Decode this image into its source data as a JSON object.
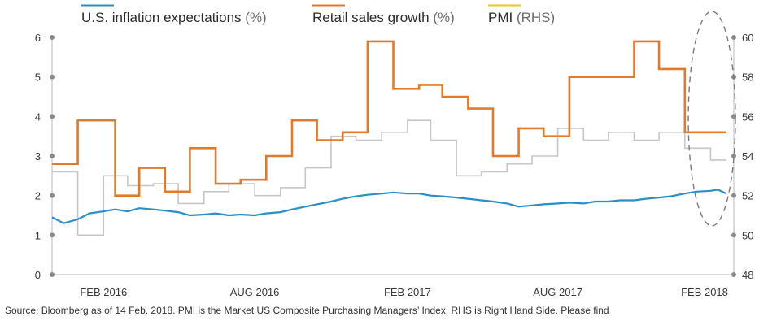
{
  "chart_data": {
    "type": "line",
    "legend": [
      {
        "label": "U.S. inflation expectations",
        "unit": "(%)",
        "color": "#2a8fc6"
      },
      {
        "label": "Retail sales growth",
        "unit": "(%)",
        "color": "#e07b2e"
      },
      {
        "label": "PMI",
        "unit": "(RHS)",
        "color": "#f2c21b"
      }
    ],
    "left_axis": {
      "ylim": [
        0,
        6
      ],
      "ticks": [
        "0",
        "1",
        "2",
        "3",
        "4",
        "5",
        "6"
      ]
    },
    "right_axis": {
      "ylim": [
        48,
        60
      ],
      "ticks": [
        "48",
        "50",
        "52",
        "54",
        "56",
        "58",
        "60"
      ]
    },
    "x_range": [
      "2015-12-01",
      "2018-03-01"
    ],
    "x_ticks": [
      {
        "label": "FEB 2016",
        "date": "2016-02-01"
      },
      {
        "label": "AUG 2016",
        "date": "2016-08-01"
      },
      {
        "label": "FEB 2017",
        "date": "2017-02-01"
      },
      {
        "label": "AUG 2017",
        "date": "2017-08-01"
      },
      {
        "label": "FEB 2018",
        "date": "2018-02-01"
      }
    ],
    "series": [
      {
        "name": "PMI (RHS)",
        "axis": "right",
        "color": "#c7c7c7",
        "step": true,
        "points": [
          [
            "2015-12-01",
            53.2
          ],
          [
            "2016-01-01",
            50.0
          ],
          [
            "2016-02-01",
            53.0
          ],
          [
            "2016-03-01",
            52.5
          ],
          [
            "2016-04-01",
            52.6
          ],
          [
            "2016-05-01",
            51.6
          ],
          [
            "2016-06-01",
            52.2
          ],
          [
            "2016-07-01",
            52.6
          ],
          [
            "2016-08-01",
            52.0
          ],
          [
            "2016-09-01",
            52.4
          ],
          [
            "2016-10-01",
            53.4
          ],
          [
            "2016-11-01",
            55.0
          ],
          [
            "2016-12-01",
            54.8
          ],
          [
            "2017-01-01",
            55.2
          ],
          [
            "2017-02-01",
            55.8
          ],
          [
            "2017-03-01",
            54.8
          ],
          [
            "2017-04-01",
            53.0
          ],
          [
            "2017-05-01",
            53.2
          ],
          [
            "2017-06-01",
            53.6
          ],
          [
            "2017-07-01",
            54.0
          ],
          [
            "2017-08-01",
            55.4
          ],
          [
            "2017-09-01",
            54.8
          ],
          [
            "2017-10-01",
            55.2
          ],
          [
            "2017-11-01",
            54.8
          ],
          [
            "2017-12-01",
            55.2
          ],
          [
            "2018-01-01",
            54.4
          ],
          [
            "2018-02-01",
            53.8
          ],
          [
            "2018-02-20",
            53.8
          ]
        ]
      },
      {
        "name": "Retail sales growth (%)",
        "axis": "left",
        "color": "#e07b2e",
        "step": true,
        "points": [
          [
            "2015-12-01",
            2.8
          ],
          [
            "2016-01-01",
            3.9
          ],
          [
            "2016-02-15",
            2.0
          ],
          [
            "2016-03-15",
            2.7
          ],
          [
            "2016-04-15",
            2.1
          ],
          [
            "2016-05-15",
            3.2
          ],
          [
            "2016-06-15",
            2.3
          ],
          [
            "2016-07-15",
            2.4
          ],
          [
            "2016-08-15",
            3.0
          ],
          [
            "2016-09-15",
            3.9
          ],
          [
            "2016-10-15",
            3.4
          ],
          [
            "2016-11-15",
            3.6
          ],
          [
            "2016-12-15",
            5.9
          ],
          [
            "2017-01-15",
            4.7
          ],
          [
            "2017-02-15",
            4.8
          ],
          [
            "2017-03-15",
            4.5
          ],
          [
            "2017-04-15",
            4.2
          ],
          [
            "2017-05-15",
            3.0
          ],
          [
            "2017-06-15",
            3.7
          ],
          [
            "2017-07-15",
            3.5
          ],
          [
            "2017-08-15",
            5.0
          ],
          [
            "2017-09-15",
            5.0
          ],
          [
            "2017-11-01",
            5.9
          ],
          [
            "2017-12-01",
            5.2
          ],
          [
            "2018-01-01",
            3.6
          ],
          [
            "2018-02-20",
            3.6
          ]
        ]
      },
      {
        "name": "U.S. inflation expectations (%)",
        "axis": "left",
        "color": "#2a8fc6",
        "step": false,
        "points": [
          [
            "2015-12-01",
            1.45
          ],
          [
            "2015-12-15",
            1.3
          ],
          [
            "2016-01-01",
            1.4
          ],
          [
            "2016-01-15",
            1.55
          ],
          [
            "2016-02-01",
            1.6
          ],
          [
            "2016-02-15",
            1.65
          ],
          [
            "2016-03-01",
            1.6
          ],
          [
            "2016-03-15",
            1.68
          ],
          [
            "2016-04-01",
            1.65
          ],
          [
            "2016-04-15",
            1.62
          ],
          [
            "2016-05-01",
            1.58
          ],
          [
            "2016-05-15",
            1.5
          ],
          [
            "2016-06-01",
            1.52
          ],
          [
            "2016-06-15",
            1.55
          ],
          [
            "2016-07-01",
            1.5
          ],
          [
            "2016-07-15",
            1.52
          ],
          [
            "2016-08-01",
            1.5
          ],
          [
            "2016-08-15",
            1.55
          ],
          [
            "2016-09-01",
            1.58
          ],
          [
            "2016-09-15",
            1.65
          ],
          [
            "2016-10-01",
            1.72
          ],
          [
            "2016-10-15",
            1.78
          ],
          [
            "2016-11-01",
            1.85
          ],
          [
            "2016-11-15",
            1.92
          ],
          [
            "2016-12-01",
            1.98
          ],
          [
            "2016-12-15",
            2.02
          ],
          [
            "2017-01-01",
            2.05
          ],
          [
            "2017-01-15",
            2.08
          ],
          [
            "2017-02-01",
            2.05
          ],
          [
            "2017-02-15",
            2.05
          ],
          [
            "2017-03-01",
            2.0
          ],
          [
            "2017-03-15",
            1.98
          ],
          [
            "2017-04-01",
            1.95
          ],
          [
            "2017-04-15",
            1.92
          ],
          [
            "2017-05-01",
            1.88
          ],
          [
            "2017-05-15",
            1.85
          ],
          [
            "2017-06-01",
            1.8
          ],
          [
            "2017-06-15",
            1.72
          ],
          [
            "2017-07-01",
            1.75
          ],
          [
            "2017-07-15",
            1.78
          ],
          [
            "2017-08-01",
            1.8
          ],
          [
            "2017-08-15",
            1.82
          ],
          [
            "2017-09-01",
            1.8
          ],
          [
            "2017-09-15",
            1.85
          ],
          [
            "2017-10-01",
            1.85
          ],
          [
            "2017-10-15",
            1.88
          ],
          [
            "2017-11-01",
            1.88
          ],
          [
            "2017-11-15",
            1.92
          ],
          [
            "2017-12-01",
            1.95
          ],
          [
            "2017-12-15",
            1.98
          ],
          [
            "2018-01-01",
            2.05
          ],
          [
            "2018-01-15",
            2.1
          ],
          [
            "2018-02-01",
            2.12
          ],
          [
            "2018-02-10",
            2.15
          ],
          [
            "2018-02-20",
            2.05
          ]
        ]
      }
    ],
    "highlight": {
      "shape": "dashed-ellipse",
      "from_date": "2018-01-15",
      "to_date": "2018-03-01"
    },
    "grid": false
  },
  "source_note": "Source: Bloomberg as of 14 Feb. 2018. PMI is the Market US Composite Purchasing Managers’ Index. RHS is Right Hand Side. Please find"
}
